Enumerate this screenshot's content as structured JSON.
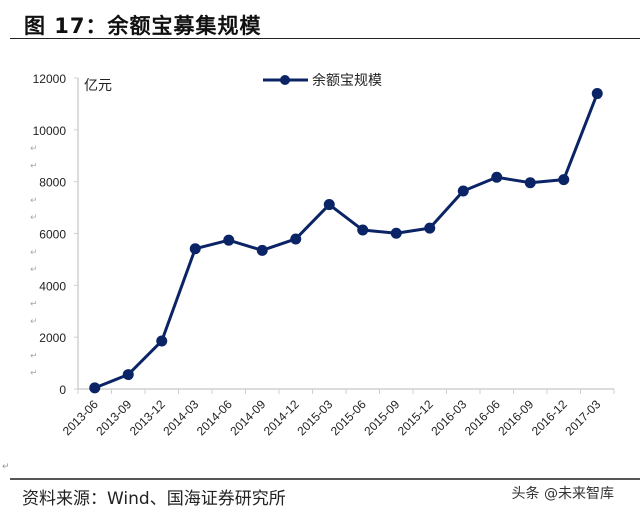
{
  "figure": {
    "title": "图 17：余额宝募集规模",
    "unit_label": "亿元",
    "legend_label": "余额宝规模",
    "source": "资料来源：Wind、国海证券研究所",
    "watermark": "头条 @未来智库",
    "para_mark": "↵"
  },
  "colors": {
    "series": "#0b2466",
    "axis": "#d0d0d0",
    "text": "#222222"
  },
  "chart_data": {
    "type": "line",
    "title": "余额宝募集规模",
    "xlabel": "",
    "ylabel": "亿元",
    "ylim": [
      0,
      12000
    ],
    "yticks": [
      0,
      2000,
      4000,
      6000,
      8000,
      10000,
      12000
    ],
    "grid": false,
    "legend_position": "top-center",
    "categories": [
      "2013-06",
      "2013-09",
      "2013-12",
      "2014-03",
      "2014-06",
      "2014-09",
      "2014-12",
      "2015-03",
      "2015-06",
      "2015-09",
      "2015-12",
      "2016-03",
      "2016-06",
      "2016-09",
      "2016-12",
      "2017-03"
    ],
    "series": [
      {
        "name": "余额宝规模",
        "values": [
          42,
          557,
          1853,
          5413,
          5742,
          5350,
          5789,
          7117,
          6134,
          6010,
          6207,
          7640,
          8170,
          7960,
          8080,
          11400
        ]
      }
    ]
  }
}
